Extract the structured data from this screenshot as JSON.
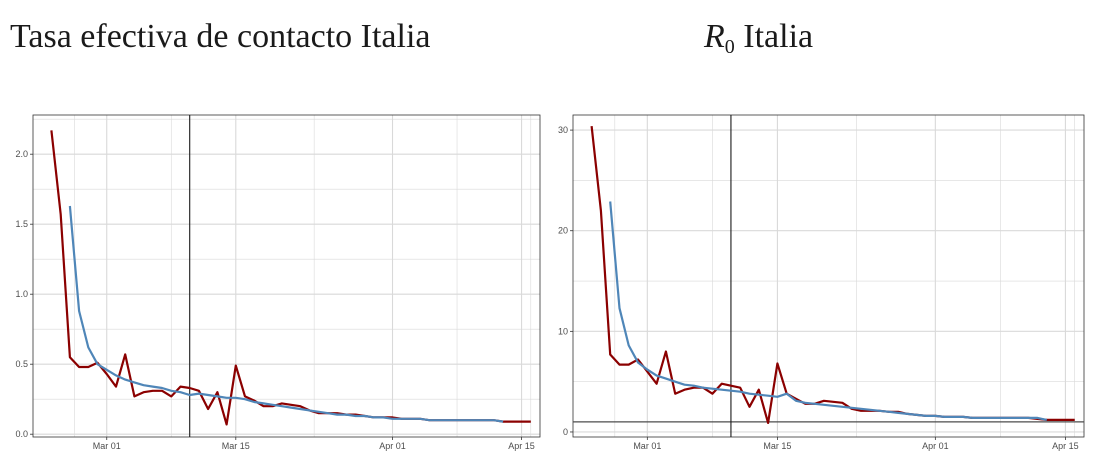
{
  "titles": {
    "left": "Tasa efectiva de contacto Italia",
    "right_symbol": "R",
    "right_subscript": "0",
    "right_rest": " Italia"
  },
  "colors": {
    "raw_series": "#8b0000",
    "smooth_series": "#4f86b8",
    "grid": "#d9d9d9",
    "axis": "#333333",
    "vline": "#1a1a1a",
    "hline": "#4d4d4d"
  },
  "chart_data": [
    {
      "type": "line",
      "title": "Tasa efectiva de contacto Italia",
      "xlabel": "",
      "ylabel": "",
      "x_ticks": [
        "Mar 01",
        "Mar 15",
        "Apr 01",
        "Apr 15"
      ],
      "y_ticks": [
        "0.0",
        "0.5",
        "1.0",
        "1.5",
        "2.0"
      ],
      "xlim": [
        "2020-02-22",
        "2020-04-17"
      ],
      "ylim": [
        -0.02,
        2.28
      ],
      "grid": true,
      "vline": "2020-03-10",
      "series": [
        {
          "role": "raw",
          "x": [
            "2020-02-24",
            "2020-02-25",
            "2020-02-26",
            "2020-02-27",
            "2020-02-28",
            "2020-02-29",
            "2020-03-01",
            "2020-03-02",
            "2020-03-03",
            "2020-03-04",
            "2020-03-05",
            "2020-03-06",
            "2020-03-07",
            "2020-03-08",
            "2020-03-09",
            "2020-03-10",
            "2020-03-11",
            "2020-03-12",
            "2020-03-13",
            "2020-03-14",
            "2020-03-15",
            "2020-03-16",
            "2020-03-17",
            "2020-03-18",
            "2020-03-19",
            "2020-03-20",
            "2020-03-21",
            "2020-03-22",
            "2020-03-23",
            "2020-03-24",
            "2020-03-25",
            "2020-03-26",
            "2020-03-27",
            "2020-03-28",
            "2020-03-29",
            "2020-03-30",
            "2020-03-31",
            "2020-04-01",
            "2020-04-02",
            "2020-04-03",
            "2020-04-04",
            "2020-04-05",
            "2020-04-06",
            "2020-04-07",
            "2020-04-08",
            "2020-04-09",
            "2020-04-10",
            "2020-04-11",
            "2020-04-12",
            "2020-04-13",
            "2020-04-14",
            "2020-04-15",
            "2020-04-16"
          ],
          "values": [
            2.17,
            1.57,
            0.55,
            0.48,
            0.48,
            0.51,
            0.43,
            0.34,
            0.57,
            0.27,
            0.3,
            0.31,
            0.31,
            0.27,
            0.34,
            0.33,
            0.31,
            0.18,
            0.3,
            0.07,
            0.49,
            0.27,
            0.24,
            0.2,
            0.2,
            0.22,
            0.21,
            0.2,
            0.17,
            0.15,
            0.15,
            0.15,
            0.14,
            0.14,
            0.13,
            0.12,
            0.12,
            0.12,
            0.11,
            0.11,
            0.11,
            0.1,
            0.1,
            0.1,
            0.1,
            0.1,
            0.1,
            0.1,
            0.1,
            0.09,
            0.09,
            0.09,
            0.09
          ]
        },
        {
          "role": "smoothed",
          "x": [
            "2020-02-26",
            "2020-02-27",
            "2020-02-28",
            "2020-02-29",
            "2020-03-01",
            "2020-03-02",
            "2020-03-03",
            "2020-03-04",
            "2020-03-05",
            "2020-03-06",
            "2020-03-07",
            "2020-03-08",
            "2020-03-09",
            "2020-03-10",
            "2020-03-11",
            "2020-03-12",
            "2020-03-13",
            "2020-03-14",
            "2020-03-15",
            "2020-03-16",
            "2020-03-17",
            "2020-03-18",
            "2020-03-19",
            "2020-03-20",
            "2020-03-21",
            "2020-03-22",
            "2020-03-23",
            "2020-03-24",
            "2020-03-25",
            "2020-03-26",
            "2020-03-27",
            "2020-03-28",
            "2020-03-29",
            "2020-03-30",
            "2020-03-31",
            "2020-04-01",
            "2020-04-02",
            "2020-04-03",
            "2020-04-04",
            "2020-04-05",
            "2020-04-06",
            "2020-04-07",
            "2020-04-08",
            "2020-04-09",
            "2020-04-10",
            "2020-04-11",
            "2020-04-12",
            "2020-04-13"
          ],
          "values": [
            1.63,
            0.88,
            0.62,
            0.5,
            0.46,
            0.42,
            0.39,
            0.37,
            0.35,
            0.34,
            0.33,
            0.31,
            0.3,
            0.28,
            0.29,
            0.28,
            0.27,
            0.26,
            0.26,
            0.25,
            0.23,
            0.22,
            0.21,
            0.2,
            0.19,
            0.18,
            0.17,
            0.16,
            0.15,
            0.14,
            0.14,
            0.13,
            0.13,
            0.12,
            0.12,
            0.11,
            0.11,
            0.11,
            0.11,
            0.1,
            0.1,
            0.1,
            0.1,
            0.1,
            0.1,
            0.1,
            0.1,
            0.09
          ]
        }
      ]
    },
    {
      "type": "line",
      "title": "R0 Italia",
      "xlabel": "",
      "ylabel": "",
      "x_ticks": [
        "Mar 01",
        "Mar 15",
        "Apr 01",
        "Apr 15"
      ],
      "y_ticks": [
        "0",
        "10",
        "20",
        "30"
      ],
      "xlim": [
        "2020-02-22",
        "2020-04-17"
      ],
      "ylim": [
        -0.5,
        31.5
      ],
      "grid": true,
      "vline": "2020-03-10",
      "hline": 1,
      "series": [
        {
          "role": "raw",
          "x": [
            "2020-02-24",
            "2020-02-25",
            "2020-02-26",
            "2020-02-27",
            "2020-02-28",
            "2020-02-29",
            "2020-03-01",
            "2020-03-02",
            "2020-03-03",
            "2020-03-04",
            "2020-03-05",
            "2020-03-06",
            "2020-03-07",
            "2020-03-08",
            "2020-03-09",
            "2020-03-10",
            "2020-03-11",
            "2020-03-12",
            "2020-03-13",
            "2020-03-14",
            "2020-03-15",
            "2020-03-16",
            "2020-03-17",
            "2020-03-18",
            "2020-03-19",
            "2020-03-20",
            "2020-03-21",
            "2020-03-22",
            "2020-03-23",
            "2020-03-24",
            "2020-03-25",
            "2020-03-26",
            "2020-03-27",
            "2020-03-28",
            "2020-03-29",
            "2020-03-30",
            "2020-03-31",
            "2020-04-01",
            "2020-04-02",
            "2020-04-03",
            "2020-04-04",
            "2020-04-05",
            "2020-04-06",
            "2020-04-07",
            "2020-04-08",
            "2020-04-09",
            "2020-04-10",
            "2020-04-11",
            "2020-04-12",
            "2020-04-13",
            "2020-04-14",
            "2020-04-15",
            "2020-04-16"
          ],
          "values": [
            30.4,
            22.0,
            7.7,
            6.7,
            6.7,
            7.2,
            6.0,
            4.8,
            8.0,
            3.8,
            4.2,
            4.4,
            4.4,
            3.8,
            4.8,
            4.6,
            4.4,
            2.5,
            4.2,
            0.9,
            6.8,
            3.8,
            3.3,
            2.8,
            2.8,
            3.1,
            3.0,
            2.9,
            2.3,
            2.1,
            2.1,
            2.1,
            2.0,
            2.0,
            1.8,
            1.7,
            1.6,
            1.6,
            1.5,
            1.5,
            1.5,
            1.4,
            1.4,
            1.4,
            1.4,
            1.4,
            1.4,
            1.4,
            1.3,
            1.2,
            1.2,
            1.2,
            1.2
          ]
        },
        {
          "role": "smoothed",
          "x": [
            "2020-02-26",
            "2020-02-27",
            "2020-02-28",
            "2020-02-29",
            "2020-03-01",
            "2020-03-02",
            "2020-03-03",
            "2020-03-04",
            "2020-03-05",
            "2020-03-06",
            "2020-03-07",
            "2020-03-08",
            "2020-03-09",
            "2020-03-10",
            "2020-03-11",
            "2020-03-12",
            "2020-03-13",
            "2020-03-14",
            "2020-03-15",
            "2020-03-16",
            "2020-03-17",
            "2020-03-18",
            "2020-03-19",
            "2020-03-20",
            "2020-03-21",
            "2020-03-22",
            "2020-03-23",
            "2020-03-24",
            "2020-03-25",
            "2020-03-26",
            "2020-03-27",
            "2020-03-28",
            "2020-03-29",
            "2020-03-30",
            "2020-03-31",
            "2020-04-01",
            "2020-04-02",
            "2020-04-03",
            "2020-04-04",
            "2020-04-05",
            "2020-04-06",
            "2020-04-07",
            "2020-04-08",
            "2020-04-09",
            "2020-04-10",
            "2020-04-11",
            "2020-04-12",
            "2020-04-13"
          ],
          "values": [
            22.9,
            12.3,
            8.6,
            6.9,
            6.2,
            5.6,
            5.3,
            5.0,
            4.7,
            4.6,
            4.4,
            4.3,
            4.2,
            4.1,
            4.0,
            3.8,
            3.7,
            3.6,
            3.5,
            3.8,
            3.1,
            2.9,
            2.8,
            2.7,
            2.6,
            2.5,
            2.4,
            2.3,
            2.2,
            2.1,
            2.0,
            1.9,
            1.8,
            1.7,
            1.6,
            1.6,
            1.5,
            1.5,
            1.5,
            1.4,
            1.4,
            1.4,
            1.4,
            1.4,
            1.4,
            1.4,
            1.4,
            1.2
          ]
        }
      ]
    }
  ]
}
